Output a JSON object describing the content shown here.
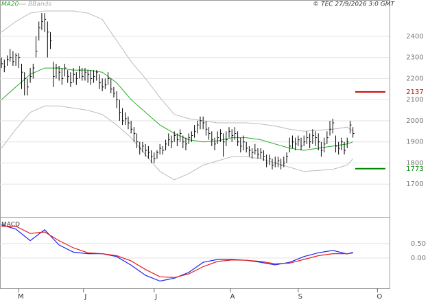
{
  "chart_data": [
    {
      "type": "ohlc",
      "copyright": "© TEC 27/9/2026 3:0 GMT",
      "ylim": [
        1548,
        2572
      ],
      "yticks": [
        1700,
        1800,
        1900,
        2000,
        2100,
        2200,
        2300,
        2400
      ],
      "grid": true,
      "bars": {
        "color": "#000000",
        "high": [
          2300,
          2290,
          2310,
          2340,
          2330,
          2320,
          2320,
          2270,
          2230,
          2200,
          2250,
          2270,
          2400,
          2470,
          2510,
          2510,
          2470,
          2420,
          2280,
          2270,
          2260,
          2250,
          2270,
          2240,
          2230,
          2250,
          2230,
          2260,
          2250,
          2250,
          2240,
          2240,
          2240,
          2240,
          2220,
          2200,
          2200,
          2230,
          2200,
          2160,
          2140,
          2100,
          2060,
          2040,
          2020,
          2000,
          1970,
          1940,
          1900,
          1900,
          1890,
          1880,
          1860,
          1850,
          1860,
          1890,
          1880,
          1910,
          1940,
          1930,
          1950,
          1940,
          1960,
          1930,
          1920,
          1940,
          1950,
          1980,
          2000,
          2020,
          2020,
          2000,
          1970,
          1950,
          1920,
          1950,
          1960,
          1940,
          1950,
          1970,
          1960,
          1970,
          1950,
          1920,
          1930,
          1900,
          1880,
          1870,
          1890,
          1870,
          1870,
          1860,
          1840,
          1840,
          1820,
          1830,
          1830,
          1820,
          1830,
          1850,
          1920,
          1930,
          1920,
          1930,
          1920,
          1930,
          1950,
          1940,
          1960,
          1950,
          1940,
          1900,
          1920,
          1950,
          2000,
          2010,
          1930,
          1900,
          1920,
          1900,
          1920,
          2000,
          1970
        ],
        "low": [
          2250,
          2230,
          2260,
          2280,
          2260,
          2260,
          2250,
          2150,
          2120,
          2120,
          2180,
          2200,
          2300,
          2380,
          2430,
          2420,
          2300,
          2340,
          2160,
          2200,
          2190,
          2170,
          2210,
          2180,
          2160,
          2180,
          2170,
          2200,
          2190,
          2190,
          2180,
          2170,
          2180,
          2190,
          2150,
          2140,
          2150,
          2170,
          2130,
          2110,
          2060,
          2000,
          1980,
          1980,
          1960,
          1940,
          1900,
          1870,
          1840,
          1850,
          1830,
          1820,
          1800,
          1800,
          1820,
          1840,
          1840,
          1860,
          1880,
          1870,
          1900,
          1880,
          1900,
          1870,
          1860,
          1890,
          1900,
          1920,
          1940,
          1960,
          1960,
          1930,
          1910,
          1880,
          1860,
          1890,
          1900,
          1830,
          1880,
          1920,
          1900,
          1910,
          1880,
          1850,
          1860,
          1850,
          1830,
          1820,
          1840,
          1820,
          1820,
          1810,
          1780,
          1790,
          1770,
          1780,
          1780,
          1770,
          1780,
          1800,
          1850,
          1870,
          1860,
          1880,
          1860,
          1880,
          1890,
          1870,
          1890,
          1880,
          1860,
          1830,
          1850,
          1890,
          1930,
          1940,
          1850,
          1840,
          1860,
          1840,
          1870,
          1940,
          1920
        ],
        "close": [
          2270,
          2255,
          2290,
          2300,
          2280,
          2310,
          2300,
          2230,
          2200,
          2160,
          2210,
          2250,
          2330,
          2440,
          2470,
          2480,
          2420,
          2380,
          2210,
          2250,
          2230,
          2200,
          2250,
          2210,
          2180,
          2220,
          2200,
          2240,
          2210,
          2230,
          2220,
          2200,
          2210,
          2230,
          2180,
          2160,
          2170,
          2200,
          2150,
          2130,
          2100,
          2040,
          2000,
          2010,
          1990,
          1960,
          1940,
          1900,
          1870,
          1880,
          1860,
          1850,
          1830,
          1820,
          1850,
          1870,
          1860,
          1890,
          1910,
          1900,
          1930,
          1910,
          1940,
          1900,
          1890,
          1920,
          1930,
          1950,
          1980,
          2000,
          1990,
          1960,
          1940,
          1910,
          1890,
          1920,
          1940,
          1900,
          1910,
          1950,
          1930,
          1940,
          1900,
          1880,
          1900,
          1870,
          1860,
          1850,
          1860,
          1840,
          1850,
          1830,
          1800,
          1820,
          1790,
          1800,
          1810,
          1790,
          1800,
          1830,
          1880,
          1900,
          1890,
          1910,
          1880,
          1900,
          1920,
          1900,
          1930,
          1920,
          1900,
          1860,
          1890,
          1920,
          1960,
          1990,
          1880,
          1870,
          1900,
          1860,
          1900,
          1980,
          1940
        ]
      },
      "series": [
        {
          "name": "MA20",
          "color": "#22aa22",
          "x": [
            0,
            5,
            10,
            15,
            20,
            25,
            30,
            35,
            40,
            45,
            50,
            55,
            60,
            65,
            70,
            75,
            80,
            85,
            90,
            95,
            100,
            105,
            110,
            115,
            120,
            122
          ],
          "values": [
            2100,
            2160,
            2220,
            2250,
            2250,
            2240,
            2240,
            2230,
            2180,
            2100,
            2040,
            1980,
            1940,
            1910,
            1900,
            1905,
            1920,
            1920,
            1910,
            1890,
            1870,
            1860,
            1870,
            1880,
            1890,
            1900
          ]
        },
        {
          "name": "BBands",
          "color": "#bbbbbb",
          "x": [
            0,
            5,
            10,
            15,
            20,
            25,
            30,
            35,
            40,
            45,
            50,
            55,
            60,
            65,
            70,
            75,
            80,
            85,
            90,
            95,
            100,
            105,
            110,
            115,
            120,
            122
          ],
          "upper": [
            2420,
            2470,
            2510,
            2520,
            2520,
            2520,
            2510,
            2480,
            2380,
            2280,
            2200,
            2110,
            2030,
            2010,
            2000,
            1990,
            1990,
            1990,
            1985,
            1975,
            1960,
            1950,
            1955,
            1960,
            1970,
            1950
          ],
          "lower": [
            1870,
            1960,
            2040,
            2070,
            2070,
            2060,
            2050,
            2030,
            1980,
            1920,
            1840,
            1760,
            1720,
            1750,
            1790,
            1810,
            1830,
            1830,
            1820,
            1800,
            1780,
            1760,
            1765,
            1770,
            1790,
            1820
          ]
        }
      ],
      "levels": [
        {
          "value": 2137,
          "color": "#cc0000"
        },
        {
          "value": 1773,
          "color": "#008800"
        }
      ]
    },
    {
      "type": "line",
      "title": "MACD",
      "ylim": [
        -1.05,
        1.4
      ],
      "yticks": [
        {
          "value": 0,
          "label": "0.00"
        },
        {
          "value": 0.5,
          "label": "0.50"
        }
      ],
      "xlim": [
        -0.5,
        134.7
      ],
      "xticks": [
        {
          "value": 6,
          "label": "M"
        },
        {
          "value": 28.5,
          "label": "J"
        },
        {
          "value": 53,
          "label": "J"
        },
        {
          "value": 79.5,
          "label": "A"
        },
        {
          "value": 103,
          "label": "S"
        },
        {
          "value": 130.5,
          "label": "O"
        }
      ],
      "x": [
        0,
        5,
        10,
        15,
        20,
        25,
        30,
        35,
        40,
        45,
        50,
        55,
        60,
        65,
        70,
        75,
        80,
        85,
        90,
        95,
        100,
        105,
        110,
        115,
        120,
        122
      ],
      "series": [
        {
          "color": "#2020ee",
          "values": [
            1.15,
            1.0,
            0.6,
            0.98,
            0.45,
            0.2,
            0.15,
            0.15,
            0.05,
            -0.25,
            -0.6,
            -0.8,
            -0.7,
            -0.5,
            -0.15,
            -0.05,
            -0.05,
            -0.08,
            -0.15,
            -0.24,
            -0.15,
            0.05,
            0.18,
            0.26,
            0.14,
            0.2
          ]
        },
        {
          "color": "#dd2020",
          "values": [
            1.1,
            1.1,
            0.85,
            0.9,
            0.6,
            0.35,
            0.18,
            0.15,
            0.08,
            -0.1,
            -0.4,
            -0.65,
            -0.68,
            -0.55,
            -0.3,
            -0.12,
            -0.07,
            -0.08,
            -0.12,
            -0.2,
            -0.18,
            -0.05,
            0.08,
            0.15,
            0.15,
            0.17
          ]
        }
      ]
    }
  ]
}
